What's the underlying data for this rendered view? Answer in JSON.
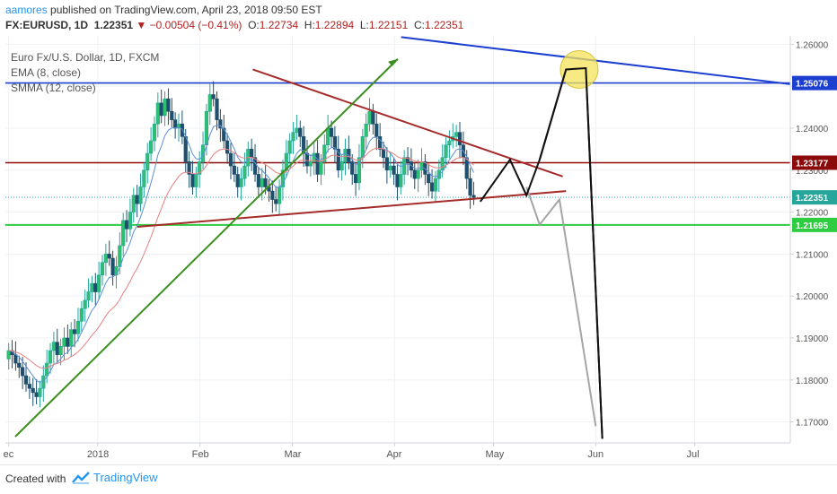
{
  "header": {
    "author": "aamores",
    "published": "published on TradingView.com, April 23, 2018 09:50 EST",
    "symbol": "FX:EURUSD, 1D",
    "last": "1.22351",
    "change": "▼ −0.00504 (−0.41%)",
    "o_label": "O:",
    "o_value": "1.22734",
    "h_label": "H:",
    "h_value": "1.22894",
    "l_label": "L:",
    "l_value": "1.22151",
    "c_label": "C:",
    "c_value": "1.22351"
  },
  "legend": {
    "title": "Euro Fx/U.S. Dollar, 1D, FXCM",
    "ema": "EMA (8, close)",
    "smma": "SMMA (12, close)"
  },
  "footer": {
    "created": "Created with",
    "brand": "TradingView"
  },
  "chart_data": {
    "type": "candlestick",
    "ylim": [
      1.165,
      1.262
    ],
    "y_ticks": [
      "1.26000",
      "1.25000",
      "1.24000",
      "1.23000",
      "1.22000",
      "1.21000",
      "1.20000",
      "1.19000",
      "1.18000",
      "1.17000"
    ],
    "y_tick_values": [
      1.26,
      1.25,
      1.24,
      1.23,
      1.22,
      1.21,
      1.2,
      1.19,
      1.18,
      1.17
    ],
    "x_ticks": [
      "ec",
      "2018",
      "Feb",
      "Mar",
      "Apr",
      "May",
      "Jun",
      "Jul"
    ],
    "x_tick_days": [
      -27,
      0,
      31,
      59,
      90,
      120,
      151,
      181
    ],
    "xlim_days": [
      -28,
      210
    ],
    "price_labels": [
      {
        "text": "1.25076",
        "value": 1.25076,
        "color": "#1c3fcf"
      },
      {
        "text": "1.23177",
        "value": 1.23177,
        "color": "#8b0a0a"
      },
      {
        "text": "1.22351",
        "value": 1.22351,
        "color": "#26a69a"
      },
      {
        "text": "1.21695",
        "value": 1.21695,
        "color": "#2ecc40"
      }
    ],
    "closes": [
      1.187,
      1.186,
      1.184,
      1.183,
      1.181,
      1.179,
      1.178,
      1.177,
      1.176,
      1.178,
      1.181,
      1.184,
      1.187,
      1.189,
      1.186,
      1.188,
      1.19,
      1.188,
      1.192,
      1.191,
      1.194,
      1.197,
      1.199,
      1.201,
      1.203,
      1.201,
      1.205,
      1.208,
      1.21,
      1.209,
      1.205,
      1.207,
      1.212,
      1.218,
      1.216,
      1.22,
      1.224,
      1.222,
      1.226,
      1.23,
      1.234,
      1.237,
      1.241,
      1.246,
      1.243,
      1.247,
      1.244,
      1.242,
      1.24,
      1.241,
      1.238,
      1.232,
      1.229,
      1.226,
      1.229,
      1.232,
      1.236,
      1.244,
      1.248,
      1.247,
      1.242,
      1.24,
      1.237,
      1.234,
      1.231,
      1.229,
      1.226,
      1.228,
      1.231,
      1.235,
      1.233,
      1.229,
      1.226,
      1.228,
      1.226,
      1.225,
      1.223,
      1.222,
      1.226,
      1.23,
      1.234,
      1.237,
      1.239,
      1.24,
      1.238,
      1.234,
      1.231,
      1.232,
      1.234,
      1.229,
      1.232,
      1.236,
      1.24,
      1.238,
      1.235,
      1.23,
      1.232,
      1.235,
      1.232,
      1.229,
      1.227,
      1.233,
      1.238,
      1.241,
      1.244,
      1.241,
      1.238,
      1.235,
      1.233,
      1.23,
      1.231,
      1.229,
      1.226,
      1.229,
      1.233,
      1.232,
      1.23,
      1.228,
      1.23,
      1.232,
      1.229,
      1.227,
      1.225,
      1.228,
      1.23,
      1.233,
      1.236,
      1.237,
      1.238,
      1.239,
      1.236,
      1.233,
      1.228,
      1.224,
      1.2235
    ],
    "ema_note": "EMA (8, close)",
    "smma_note": "SMMA (12, close)",
    "lines": [
      {
        "name": "resistance",
        "color": "#1c3fcf",
        "points": [
          [
            -28,
            1.25076
          ],
          [
            210,
            1.25076
          ]
        ]
      },
      {
        "name": "support-red",
        "color": "#8b0a0a",
        "points": [
          [
            -28,
            1.23177
          ],
          [
            210,
            1.23177
          ]
        ]
      },
      {
        "name": "support-green",
        "color": "#2ecc40",
        "points": [
          [
            -28,
            1.21695
          ],
          [
            210,
            1.21695
          ]
        ]
      },
      {
        "name": "triangle-top",
        "color": "#a52a2a",
        "points": [
          [
            47,
            1.254
          ],
          [
            141,
            1.2285
          ]
        ]
      },
      {
        "name": "triangle-bottom",
        "color": "#a52a2a",
        "points": [
          [
            12,
            1.2165
          ],
          [
            142,
            1.225
          ]
        ]
      },
      {
        "name": "green-trend",
        "color": "#3a8f1f",
        "points": [
          [
            -25,
            1.1665
          ],
          [
            91,
            1.2565
          ]
        ]
      },
      {
        "name": "blue-trend",
        "color": "#1c3fcf",
        "points": [
          [
            92,
            1.2617
          ],
          [
            210,
            1.2505
          ]
        ]
      }
    ],
    "projection_black": [
      [
        116,
        1.2225
      ],
      [
        125,
        1.2325
      ],
      [
        130,
        1.224
      ],
      [
        134,
        1.2325
      ],
      [
        142,
        1.254
      ],
      [
        148,
        1.2543
      ],
      [
        153,
        1.166
      ]
    ],
    "projection_grey": [
      [
        130,
        1.226
      ],
      [
        134,
        1.217
      ],
      [
        140,
        1.223
      ],
      [
        151,
        1.169
      ]
    ],
    "highlight": {
      "day": 146,
      "value": 1.254
    }
  }
}
